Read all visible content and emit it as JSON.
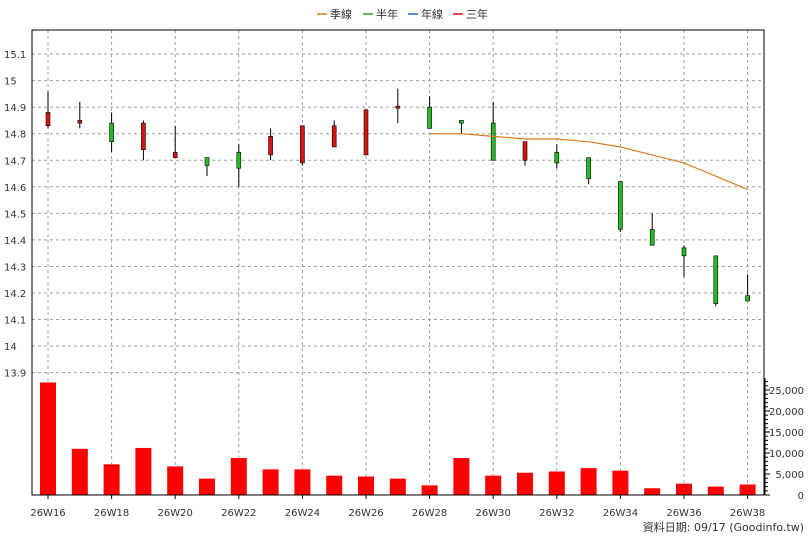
{
  "legend": [
    {
      "label": "季線",
      "color": "#e07b1c"
    },
    {
      "label": "半年",
      "color": "#22aa22"
    },
    {
      "label": "年線",
      "color": "#2266cc"
    },
    {
      "label": "三年",
      "color": "#dd1111"
    }
  ],
  "footer": "資料日期: 09/17  (Goodinfo.tw)",
  "colors": {
    "up": "#dd1111",
    "down": "#22bb22",
    "volume": "#ff0000",
    "ma": "#e07b1c",
    "grid": "#a0a0a0"
  },
  "chart_data": {
    "type": "candlestick",
    "price_axis": {
      "min": 13.85,
      "max": 15.2,
      "ticks": [
        13.9,
        14,
        14.1,
        14.2,
        14.3,
        14.4,
        14.5,
        14.6,
        14.7,
        14.8,
        14.9,
        15,
        15.1
      ]
    },
    "volume_axis": {
      "min": 0,
      "max": 28000,
      "ticks": [
        0,
        5000,
        10000,
        15000,
        20000,
        25000
      ]
    },
    "x_labels": [
      "26W16",
      "26W18",
      "26W20",
      "26W22",
      "26W24",
      "26W26",
      "26W28",
      "26W30",
      "26W32",
      "26W34",
      "26W36",
      "26W38"
    ],
    "weeks": [
      "26W16",
      "26W17",
      "26W18",
      "26W19",
      "26W20",
      "26W21",
      "26W22",
      "26W23",
      "26W24",
      "26W25",
      "26W26",
      "26W27",
      "26W28",
      "26W29",
      "26W30",
      "26W31",
      "26W32",
      "26W33",
      "26W34",
      "26W35",
      "26W36",
      "26W37",
      "26W38"
    ],
    "ohlc": [
      [
        14.83,
        14.96,
        14.82,
        14.88
      ],
      [
        14.84,
        14.92,
        14.82,
        14.85
      ],
      [
        14.84,
        14.88,
        14.73,
        14.77
      ],
      [
        14.74,
        14.85,
        14.7,
        14.84
      ],
      [
        14.71,
        14.83,
        14.71,
        14.73
      ],
      [
        14.71,
        14.71,
        14.64,
        14.68
      ],
      [
        14.73,
        14.76,
        14.6,
        14.67
      ],
      [
        14.72,
        14.82,
        14.7,
        14.79
      ],
      [
        14.69,
        14.83,
        14.68,
        14.83
      ],
      [
        14.75,
        14.85,
        14.75,
        14.83
      ],
      [
        14.72,
        14.89,
        14.72,
        14.89
      ],
      [
        14.9,
        14.97,
        14.84,
        14.9
      ],
      [
        14.9,
        14.94,
        14.82,
        14.82
      ],
      [
        14.85,
        14.85,
        14.8,
        14.84
      ],
      [
        14.84,
        14.92,
        14.7,
        14.7
      ],
      [
        14.7,
        14.77,
        14.68,
        14.77
      ],
      [
        14.73,
        14.76,
        14.67,
        14.69
      ],
      [
        14.71,
        14.71,
        14.61,
        14.63
      ],
      [
        14.62,
        14.62,
        14.43,
        14.44
      ],
      [
        14.44,
        14.5,
        14.38,
        14.38
      ],
      [
        14.37,
        14.38,
        14.26,
        14.34
      ],
      [
        14.34,
        14.34,
        14.15,
        14.16
      ],
      [
        14.19,
        14.27,
        14.17,
        14.17
      ]
    ],
    "volume": [
      26800,
      11000,
      7300,
      11200,
      6800,
      3900,
      8800,
      6100,
      6100,
      4600,
      4400,
      3900,
      2300,
      8800,
      4600,
      5300,
      5600,
      6400,
      5800,
      1600,
      2700,
      2000,
      2500
    ],
    "ma_quarter": {
      "start_index": 12,
      "values": [
        14.8,
        14.8,
        14.79,
        14.78,
        14.78,
        14.77,
        14.75,
        14.72,
        14.69,
        14.64,
        14.59
      ]
    }
  }
}
